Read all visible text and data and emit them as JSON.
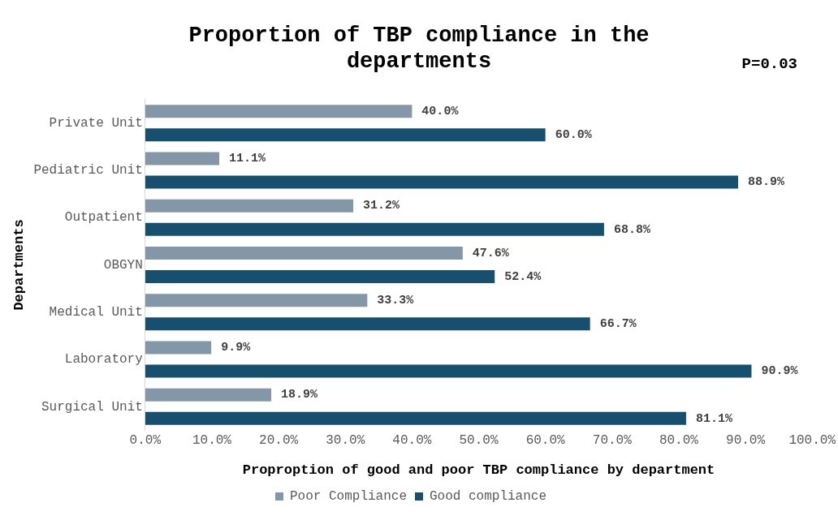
{
  "chart_data": {
    "type": "bar",
    "orientation": "horizontal",
    "title": "Proportion of TBP compliance in the departments",
    "xlabel": "Proproption of good and poor TBP compliance by department",
    "ylabel": "Departments",
    "annotations": [
      "P=0.03"
    ],
    "categories": [
      "Private Unit",
      "Pediatric Unit",
      "Outpatient",
      "OBGYN",
      "Medical Unit",
      "Laboratory",
      "Surgical Unit"
    ],
    "series": [
      {
        "name": "Poor Compliance",
        "color": "#8497a9",
        "values": [
          40.0,
          11.1,
          31.2,
          47.6,
          33.3,
          9.9,
          18.9
        ],
        "value_labels": [
          "40.0%",
          "11.1%",
          "31.2%",
          "47.6%",
          "33.3%",
          "9.9%",
          "18.9%"
        ]
      },
      {
        "name": "Good compliance",
        "color": "#17506e",
        "values": [
          60.0,
          88.9,
          68.8,
          52.4,
          66.7,
          90.9,
          81.1
        ],
        "value_labels": [
          "60.0%",
          "88.9%",
          "68.8%",
          "52.4%",
          "66.7%",
          "90.9%",
          "81.1%"
        ]
      }
    ],
    "xlim": [
      0,
      100
    ],
    "xticks": [
      {
        "value": 0,
        "label": "0.0%"
      },
      {
        "value": 10,
        "label": "10.0%"
      },
      {
        "value": 20,
        "label": "20.0%"
      },
      {
        "value": 30,
        "label": "30.0%"
      },
      {
        "value": 40,
        "label": "40.0%"
      },
      {
        "value": 50,
        "label": "50.0%"
      },
      {
        "value": 60,
        "label": "60.0%"
      },
      {
        "value": 70,
        "label": "70.0%"
      },
      {
        "value": 80,
        "label": "80.0%"
      },
      {
        "value": 90,
        "label": "90.0%"
      },
      {
        "value": 100,
        "label": "100.0%"
      }
    ],
    "grid": false,
    "legend": "bottom"
  }
}
